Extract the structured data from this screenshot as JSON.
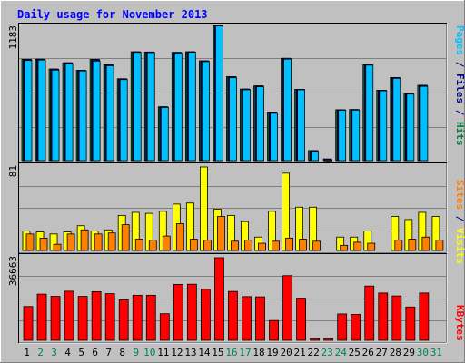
{
  "chart_data": [
    {
      "type": "bar",
      "panel": "hits-files-pages",
      "title": "Daily usage for November 2013",
      "ylabel_parts": [
        {
          "text": "Pages",
          "color": "#00c0ff"
        },
        {
          "text": " / ",
          "color": "#000080"
        },
        {
          "text": "Files",
          "color": "#000080"
        },
        {
          "text": " / ",
          "color": "#000080"
        },
        {
          "text": "Hits",
          "color": "#008040"
        }
      ],
      "ymax_label": "1183",
      "ylim": [
        0,
        1183
      ],
      "categories": [
        "1",
        "2",
        "3",
        "4",
        "5",
        "6",
        "7",
        "8",
        "9",
        "10",
        "11",
        "12",
        "13",
        "14",
        "15",
        "16",
        "17",
        "18",
        "19",
        "20",
        "21",
        "22",
        "23",
        "24",
        "25",
        "26",
        "27",
        "28",
        "29",
        "30",
        "31"
      ],
      "series": [
        {
          "name": "Hits",
          "color": "#008040",
          "values": [
            886,
            887,
            801,
            856,
            790,
            885,
            838,
            716,
            952,
            950,
            471,
            947,
            952,
            873,
            1183,
            735,
            626,
            654,
            425,
            895,
            624,
            88,
            0,
            445,
            447,
            839,
            616,
            727,
            590,
            659,
            0
          ]
        },
        {
          "name": "Files",
          "color": "#000080",
          "values": [
            886,
            887,
            801,
            856,
            790,
            885,
            838,
            716,
            952,
            950,
            471,
            947,
            952,
            873,
            1183,
            735,
            626,
            654,
            425,
            895,
            624,
            88,
            15,
            445,
            447,
            839,
            616,
            727,
            590,
            659,
            0
          ]
        },
        {
          "name": "Pages",
          "color": "#00c0ff",
          "values": [
            876,
            880,
            792,
            850,
            785,
            871,
            830,
            709,
            947,
            945,
            465,
            941,
            948,
            866,
            1178,
            725,
            620,
            646,
            414,
            888,
            620,
            78,
            5,
            441,
            442,
            835,
            611,
            720,
            582,
            650,
            0
          ]
        }
      ]
    },
    {
      "type": "bar",
      "panel": "visits-sites",
      "ylabel_parts": [
        {
          "text": "Sites",
          "color": "#ff8000"
        },
        {
          "text": " / ",
          "color": "#000080"
        },
        {
          "text": "Visits",
          "color": "#ffff00"
        }
      ],
      "ymax_label": "81",
      "ylim": [
        0,
        81
      ],
      "series": [
        {
          "name": "Visits",
          "color": "#ffff00",
          "values": [
            19,
            18,
            16,
            18,
            24,
            19,
            20,
            34,
            37,
            36,
            38,
            45,
            46,
            81,
            40,
            34,
            28,
            13,
            38,
            75,
            42,
            42,
            0,
            13,
            13,
            19,
            0,
            33,
            30,
            37,
            33
          ]
        },
        {
          "name": "Sites",
          "color": "#ff8000",
          "values": [
            16,
            12,
            6,
            16,
            20,
            16,
            17,
            25,
            11,
            10,
            14,
            26,
            11,
            10,
            33,
            9,
            10,
            7,
            9,
            12,
            11,
            9,
            0,
            5,
            8,
            7,
            0,
            10,
            11,
            13,
            10
          ]
        }
      ]
    },
    {
      "type": "bar",
      "panel": "kbytes",
      "ylabel_parts": [
        {
          "text": "KBytes",
          "color": "#ff0000"
        }
      ],
      "ymax_label": "36663",
      "ylim": [
        0,
        36663
      ],
      "series": [
        {
          "name": "KBytes",
          "color": "#ff0000",
          "values": [
            15000,
            20500,
            19500,
            21800,
            19500,
            21600,
            20700,
            18000,
            20000,
            20000,
            11800,
            24800,
            24900,
            22700,
            36663,
            21700,
            19400,
            19300,
            8800,
            28700,
            18700,
            800,
            800,
            11700,
            11500,
            24100,
            21000,
            19700,
            14800,
            21000,
            0
          ]
        }
      ]
    },
    {
      "type": "bar",
      "panel": "x-axis",
      "weekend_days": [
        "2",
        "3",
        "9",
        "10",
        "16",
        "17",
        "23",
        "24",
        "30",
        "31"
      ],
      "weekday_color": "#000000",
      "weekend_color": "#00805c"
    }
  ]
}
